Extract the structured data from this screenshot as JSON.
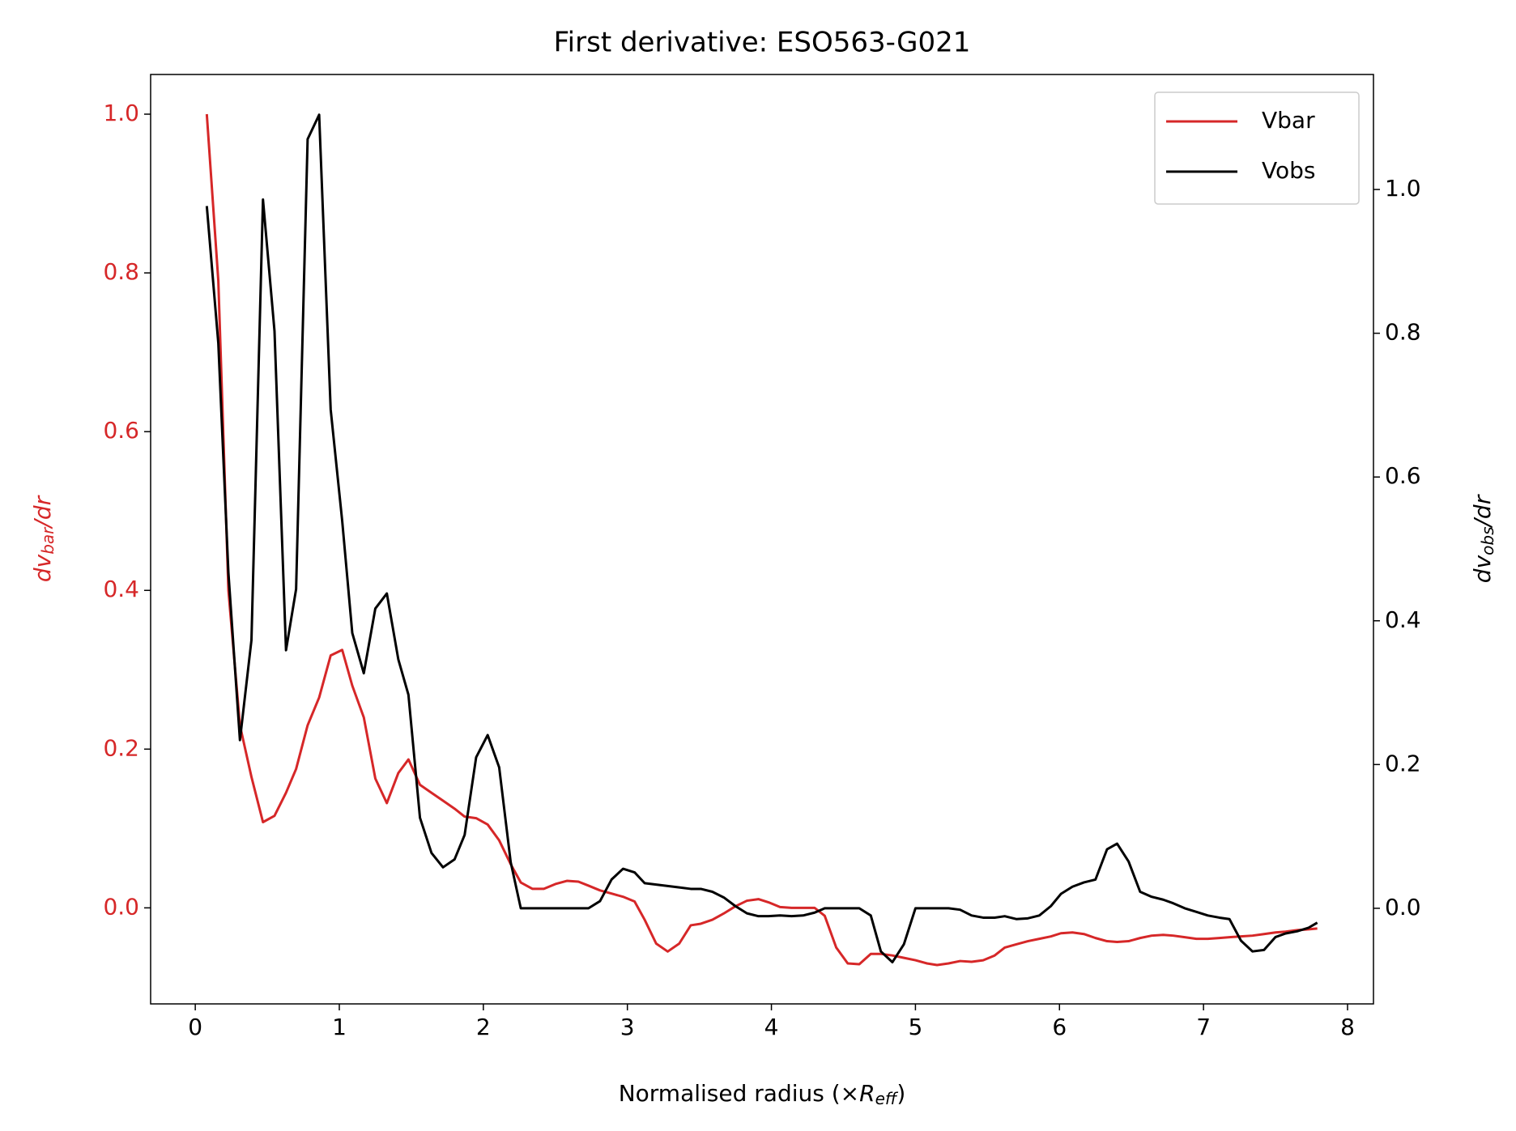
{
  "chart_data": {
    "type": "line",
    "title": "First derivative: ESO563-G021",
    "xlabel": [
      "Normalised radius (×",
      "R",
      "eff",
      ")"
    ],
    "ylabel": [
      "dv",
      "bar",
      "/dr"
    ],
    "y2label": [
      "dv",
      "obs",
      "/dr"
    ],
    "x": [
      0.08,
      0.16,
      0.23,
      0.31,
      0.39,
      0.47,
      0.55,
      0.63,
      0.7,
      0.78,
      0.86,
      0.94,
      1.02,
      1.09,
      1.17,
      1.25,
      1.33,
      1.41,
      1.48,
      1.56,
      1.64,
      1.72,
      1.8,
      1.87,
      1.95,
      2.03,
      2.11,
      2.19,
      2.26,
      2.34,
      2.42,
      2.5,
      2.58,
      2.66,
      2.73,
      2.81,
      2.89,
      2.97,
      3.05,
      3.12,
      3.2,
      3.28,
      3.36,
      3.44,
      3.51,
      3.59,
      3.67,
      3.75,
      3.83,
      3.91,
      3.98,
      4.06,
      4.14,
      4.22,
      4.3,
      4.37,
      4.45,
      4.53,
      4.61,
      4.69,
      4.76,
      4.84,
      4.92,
      5.0,
      5.08,
      5.15,
      5.23,
      5.31,
      5.39,
      5.47,
      5.55,
      5.62,
      5.7,
      5.78,
      5.86,
      5.94,
      6.01,
      6.09,
      6.17,
      6.25,
      6.33,
      6.4,
      6.48,
      6.56,
      6.64,
      6.72,
      6.79,
      6.87,
      6.95,
      7.03,
      7.11,
      7.18,
      7.26,
      7.34,
      7.42,
      7.5,
      7.57,
      7.65,
      7.73,
      7.79
    ],
    "series": [
      {
        "name": "Vbar",
        "color": "#d62728",
        "axis": "y",
        "values": [
          1.0,
          0.79,
          0.4,
          0.23,
          0.165,
          0.108,
          0.116,
          0.145,
          0.175,
          0.23,
          0.265,
          0.318,
          0.325,
          0.28,
          0.24,
          0.163,
          0.132,
          0.17,
          0.187,
          0.155,
          0.145,
          0.135,
          0.125,
          0.115,
          0.113,
          0.105,
          0.085,
          0.055,
          0.032,
          0.024,
          0.024,
          0.03,
          0.034,
          0.033,
          0.028,
          0.022,
          0.018,
          0.014,
          0.008,
          -0.015,
          -0.045,
          -0.055,
          -0.045,
          -0.022,
          -0.02,
          -0.015,
          -0.007,
          0.002,
          0.009,
          0.011,
          0.007,
          0.001,
          0.0,
          0.0,
          0.0,
          -0.01,
          -0.05,
          -0.07,
          -0.071,
          -0.058,
          -0.058,
          -0.06,
          -0.063,
          -0.066,
          -0.07,
          -0.072,
          -0.07,
          -0.067,
          -0.068,
          -0.066,
          -0.06,
          -0.05,
          -0.046,
          -0.042,
          -0.039,
          -0.036,
          -0.032,
          -0.031,
          -0.033,
          -0.038,
          -0.042,
          -0.043,
          -0.042,
          -0.038,
          -0.035,
          -0.034,
          -0.035,
          -0.037,
          -0.039,
          -0.039,
          -0.038,
          -0.037,
          -0.036,
          -0.035,
          -0.033,
          -0.031,
          -0.03,
          -0.028,
          -0.027,
          -0.026
        ]
      },
      {
        "name": "Vobs",
        "color": "#000000",
        "axis": "y2",
        "values": [
          0.977,
          0.786,
          0.467,
          0.234,
          0.373,
          0.986,
          0.803,
          0.359,
          0.444,
          1.07,
          1.104,
          0.694,
          0.539,
          0.383,
          0.327,
          0.417,
          0.438,
          0.346,
          0.297,
          0.126,
          0.077,
          0.057,
          0.068,
          0.102,
          0.21,
          0.241,
          0.196,
          0.064,
          0.0,
          0.0,
          0.0,
          0.0,
          0.0,
          0.0,
          0.0,
          0.01,
          0.04,
          0.055,
          0.05,
          0.035,
          0.033,
          0.031,
          0.029,
          0.027,
          0.027,
          0.023,
          0.015,
          0.003,
          -0.007,
          -0.011,
          -0.011,
          -0.01,
          -0.011,
          -0.01,
          -0.006,
          0.0,
          0.0,
          0.0,
          0.0,
          -0.01,
          -0.06,
          -0.075,
          -0.05,
          0.0,
          0.0,
          0.0,
          0.0,
          -0.002,
          -0.01,
          -0.013,
          -0.013,
          -0.011,
          -0.015,
          -0.014,
          -0.01,
          0.003,
          0.02,
          0.03,
          0.036,
          0.04,
          0.082,
          0.09,
          0.065,
          0.023,
          0.016,
          0.012,
          0.007,
          0.0,
          -0.005,
          -0.01,
          -0.013,
          -0.015,
          -0.045,
          -0.06,
          -0.058,
          -0.04,
          -0.035,
          -0.032,
          -0.027,
          -0.02
        ]
      }
    ],
    "xlim": [
      -0.31,
      8.18
    ],
    "xticks": [
      0,
      1,
      2,
      3,
      4,
      5,
      6,
      7,
      8
    ],
    "ylim": [
      -0.121,
      1.05
    ],
    "yticks": [
      {
        "value": 0,
        "label": "0.0"
      },
      0.2,
      0.4,
      0.6,
      0.8,
      {
        "value": 1,
        "label": "1.0"
      }
    ],
    "y2lim": [
      -0.133,
      1.16
    ],
    "y2ticks": [
      {
        "value": 0,
        "label": "0.0"
      },
      0.2,
      0.4,
      0.6,
      0.8,
      {
        "value": 1,
        "label": "1.0"
      }
    ],
    "ylabel_color": "#d62728",
    "legend": "upper right"
  }
}
